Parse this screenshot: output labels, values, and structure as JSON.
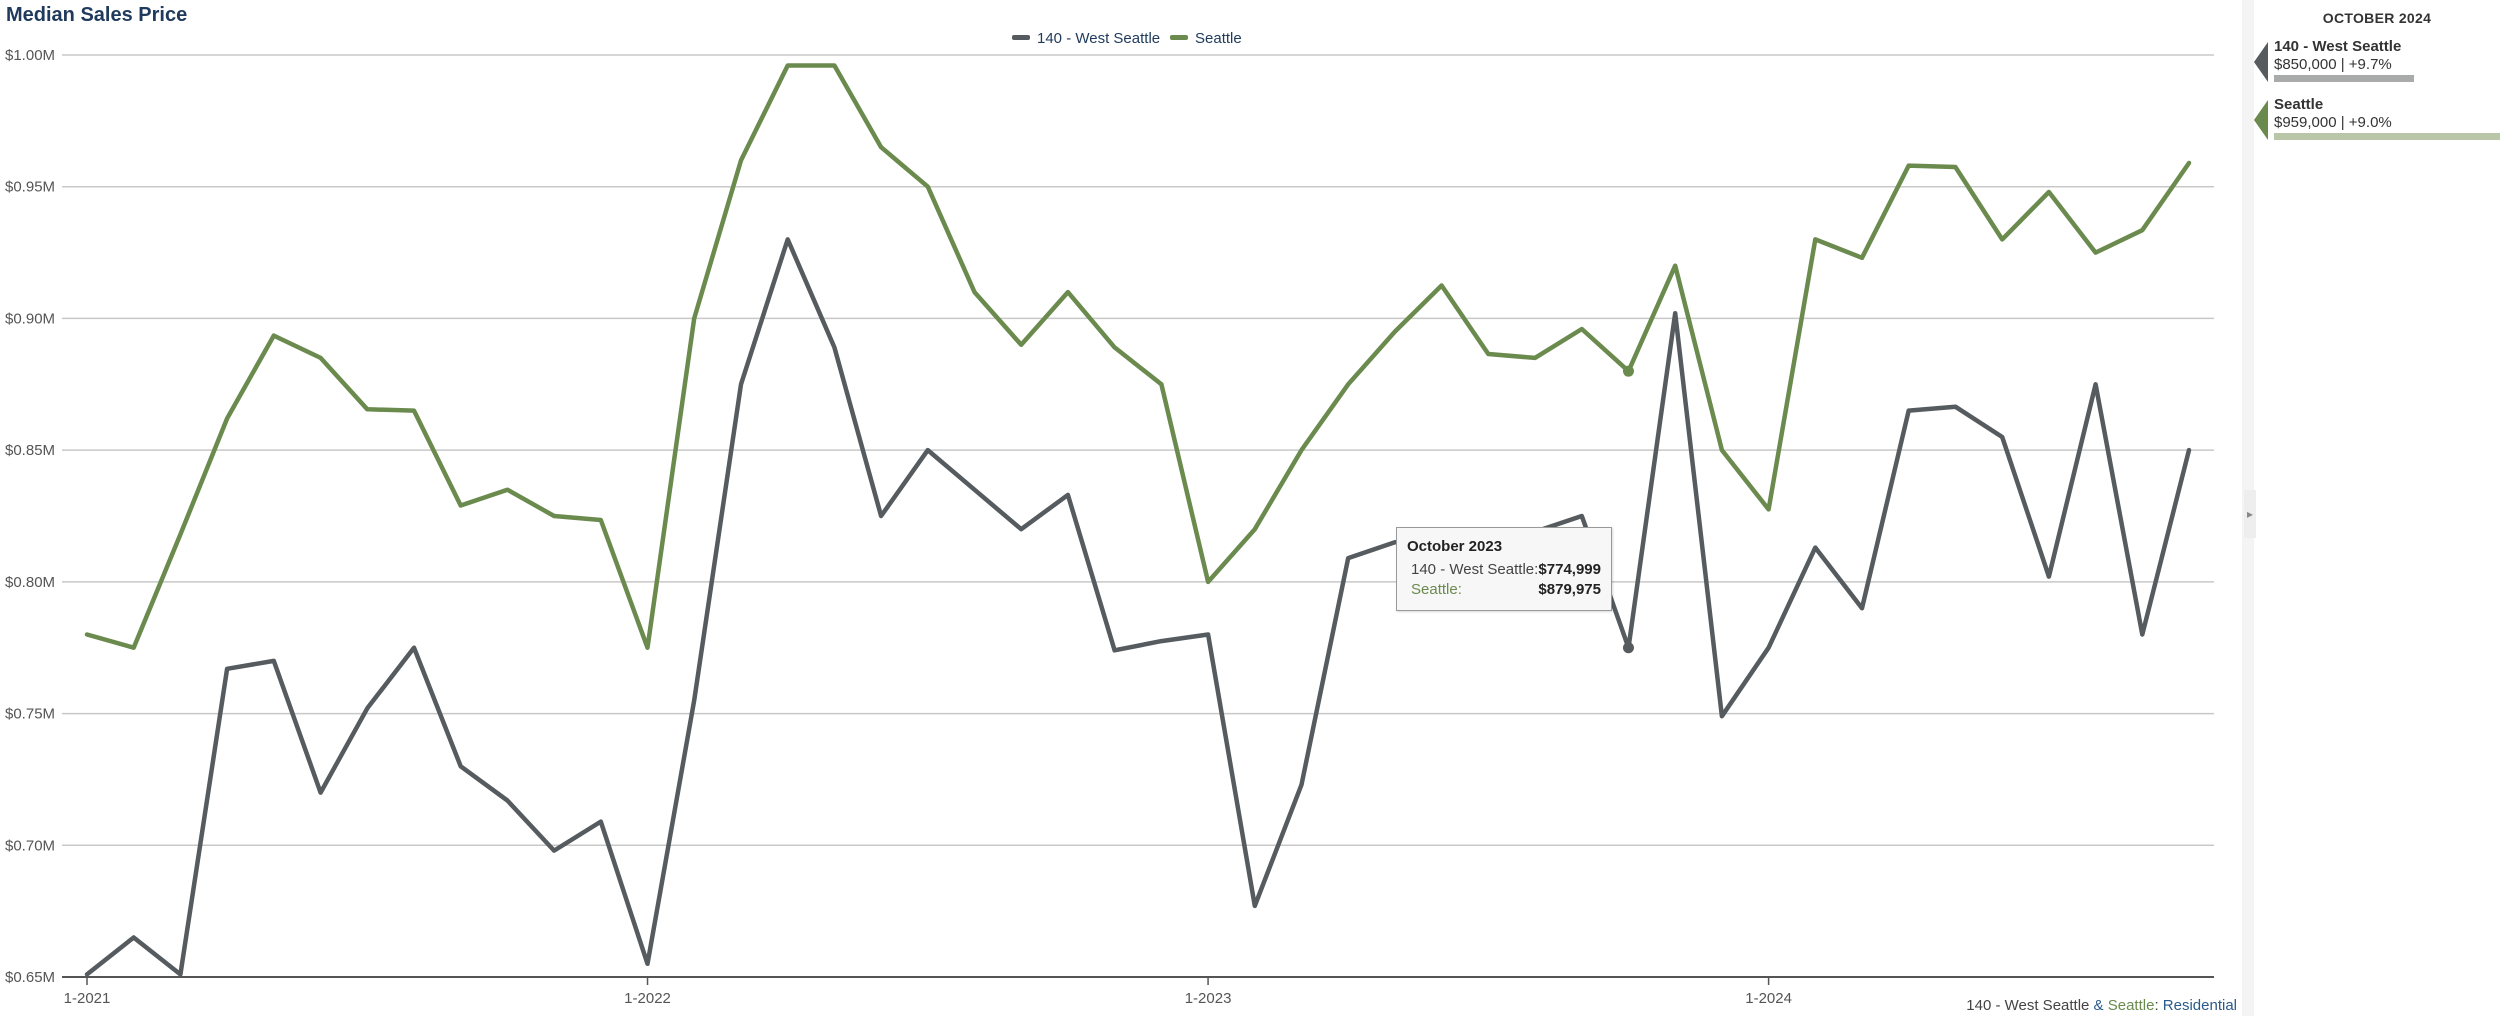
{
  "title": "Median Sales Price",
  "colors": {
    "west_seattle": "#555b5e",
    "seattle": "#6b8a4e",
    "title": "#1f3a5c",
    "residential": "#2a5a8a"
  },
  "chart_data": {
    "type": "line",
    "title": "Median Sales Price",
    "xlabel": "",
    "ylabel": "",
    "ylim": [
      650000,
      1000000
    ],
    "y_ticks": [
      "$0.65M",
      "$0.70M",
      "$0.75M",
      "$0.80M",
      "$0.85M",
      "$0.90M",
      "$0.95M",
      "$1.00M"
    ],
    "y_tick_values": [
      650000,
      700000,
      750000,
      800000,
      850000,
      900000,
      950000,
      1000000
    ],
    "x_ticks": [
      "1-2021",
      "1-2022",
      "1-2023",
      "1-2024"
    ],
    "x": [
      "1-2021",
      "2-2021",
      "3-2021",
      "4-2021",
      "5-2021",
      "6-2021",
      "7-2021",
      "8-2021",
      "9-2021",
      "10-2021",
      "11-2021",
      "12-2021",
      "1-2022",
      "2-2022",
      "3-2022",
      "4-2022",
      "5-2022",
      "6-2022",
      "7-2022",
      "8-2022",
      "9-2022",
      "10-2022",
      "11-2022",
      "12-2022",
      "1-2023",
      "2-2023",
      "3-2023",
      "4-2023",
      "5-2023",
      "6-2023",
      "7-2023",
      "8-2023",
      "9-2023",
      "10-2023",
      "11-2023",
      "12-2023",
      "1-2024",
      "2-2024",
      "3-2024",
      "4-2024",
      "5-2024",
      "6-2024",
      "7-2024",
      "8-2024",
      "9-2024",
      "10-2024"
    ],
    "grid": true,
    "legend": "top-center",
    "series": [
      {
        "name": "140 - West Seattle",
        "values": [
          651000,
          665000,
          651000,
          767000,
          770000,
          720000,
          752000,
          775000,
          730000,
          717000,
          698000,
          709000,
          655000,
          755000,
          875000,
          930000,
          889000,
          825000,
          850000,
          835000,
          820000,
          833000,
          774000,
          777500,
          780000,
          677000,
          723000,
          809000,
          815000,
          816000,
          817000,
          819000,
          825000,
          774999,
          902000,
          749000,
          775000,
          813000,
          790000,
          865000,
          866500,
          855000,
          802000,
          875000,
          780000,
          850000
        ]
      },
      {
        "name": "Seattle",
        "values": [
          780000,
          775000,
          818000,
          862000,
          893500,
          885000,
          865500,
          865000,
          829000,
          835000,
          825000,
          823500,
          775000,
          900000,
          960000,
          996000,
          996000,
          965000,
          950000,
          910000,
          890000,
          910000,
          889000,
          875000,
          800000,
          820000,
          850000,
          875000,
          895000,
          912500,
          886500,
          885000,
          896000,
          879975,
          920000,
          850000,
          827500,
          930000,
          923000,
          958000,
          957500,
          930000,
          948000,
          925000,
          933500,
          959000
        ]
      }
    ],
    "highlight": {
      "index": 33,
      "label": "October 2023"
    }
  },
  "tooltip": {
    "title": "October 2023",
    "rows": [
      {
        "label": "140 - West Seattle:",
        "value": "$774,999"
      },
      {
        "label": "Seattle:",
        "value": "$879,975"
      }
    ]
  },
  "side_panel": {
    "title": "OCTOBER 2024",
    "items": [
      {
        "name": "140 - West Seattle",
        "value": "$850,000 | +9.7%",
        "color": "#555b5e",
        "bar_color": "#a9abab",
        "bar_fraction": 0.61
      },
      {
        "name": "Seattle",
        "value": "$959,000 | +9.0%",
        "color": "#6b8a4e",
        "bar_color": "#b9c6a8",
        "bar_fraction": 1.0
      }
    ]
  },
  "footer": {
    "part1": "140 - West Seattle",
    "amp": " & ",
    "part2": "Seattle",
    "sep": ": ",
    "part3": "Residential"
  }
}
